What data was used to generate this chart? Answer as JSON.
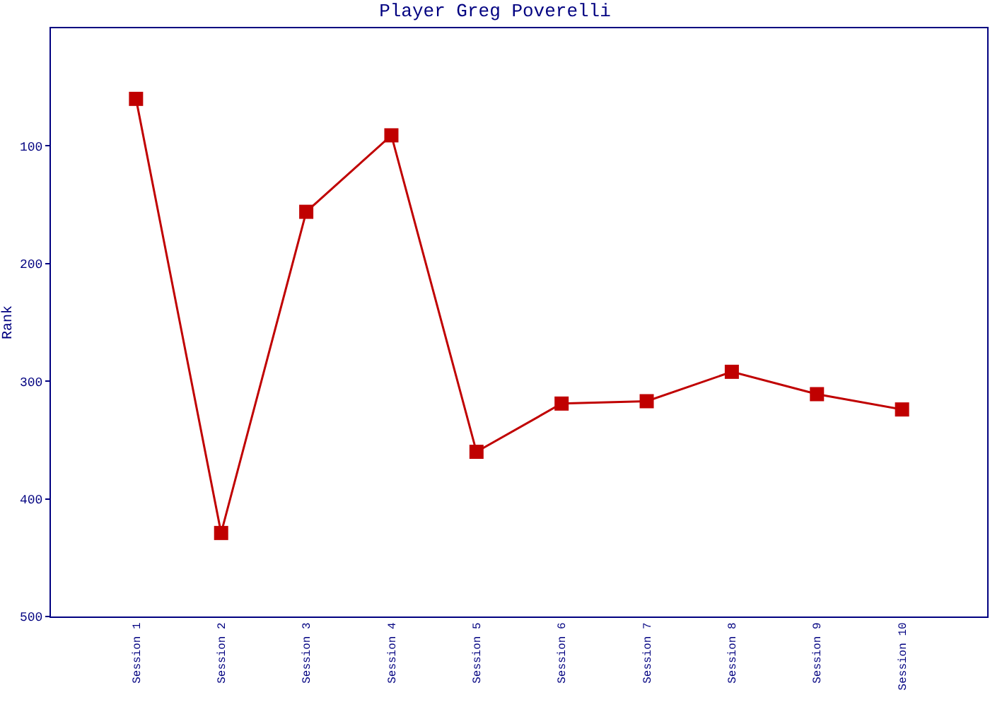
{
  "chart_data": {
    "type": "line",
    "title": "Player Greg Poverelli",
    "ylabel": "Rank",
    "categories": [
      "Session 1",
      "Session 2",
      "Session 3",
      "Session 4",
      "Session 5",
      "Session 6",
      "Session 7",
      "Session 8",
      "Session 9",
      "Session 10"
    ],
    "series": [
      {
        "color": "#c00000",
        "values": [
          60,
          429,
          156,
          91,
          360,
          319,
          317,
          292,
          311,
          324
        ]
      }
    ],
    "ylim": [
      500,
      0
    ],
    "yticks": [
      100,
      200,
      300,
      400,
      500
    ],
    "marker": "square",
    "line_style": "solid"
  }
}
